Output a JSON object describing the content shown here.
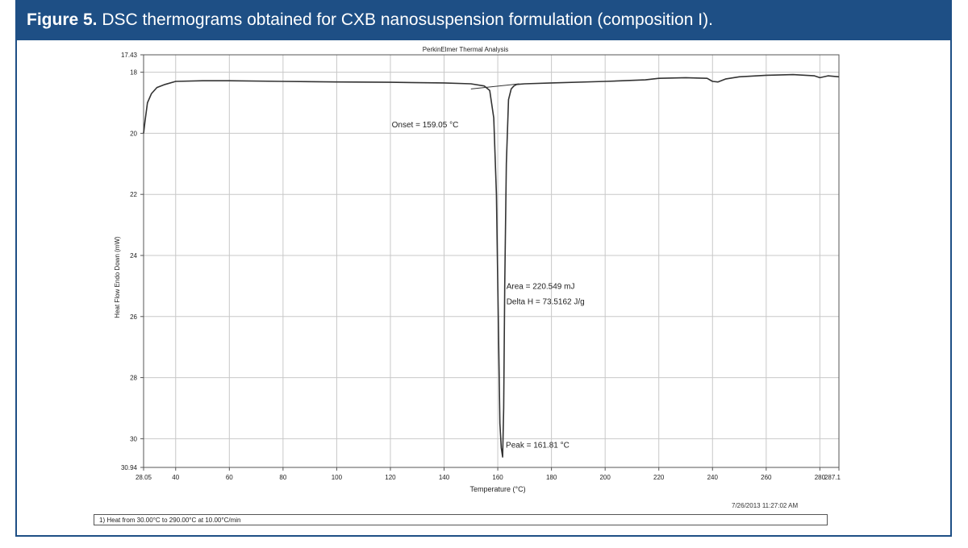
{
  "figure": {
    "label": "Figure 5.",
    "caption": "DSC thermograms obtained for CXB nanosuspension formulation (composition I)."
  },
  "colors": {
    "banner": "#1e4f85",
    "line": "#333333",
    "grid": "#c8c8c8"
  },
  "chart_data": {
    "type": "line",
    "title": "PerkinElmer Thermal Analysis",
    "xlabel": "Temperature (°C)",
    "ylabel": "Heat Flow Endo Down (mW)",
    "xlim": [
      28.05,
      287.1
    ],
    "ylim": [
      17.43,
      30.94
    ],
    "y_inverted": true,
    "grid": true,
    "x_ticks": [
      {
        "v": 28.05,
        "label": "28.05"
      },
      {
        "v": 40,
        "label": "40"
      },
      {
        "v": 60,
        "label": "60"
      },
      {
        "v": 80,
        "label": "80"
      },
      {
        "v": 100,
        "label": "100"
      },
      {
        "v": 120,
        "label": "120"
      },
      {
        "v": 140,
        "label": "140"
      },
      {
        "v": 160,
        "label": "160"
      },
      {
        "v": 180,
        "label": "180"
      },
      {
        "v": 200,
        "label": "200"
      },
      {
        "v": 220,
        "label": "220"
      },
      {
        "v": 240,
        "label": "240"
      },
      {
        "v": 260,
        "label": "260"
      },
      {
        "v": 280,
        "label": "280"
      },
      {
        "v": 287.1,
        "label": "287.1"
      }
    ],
    "y_ticks": [
      {
        "v": 17.43,
        "label": "17.43"
      },
      {
        "v": 18,
        "label": "18"
      },
      {
        "v": 20,
        "label": "20"
      },
      {
        "v": 22,
        "label": "22"
      },
      {
        "v": 24,
        "label": "24"
      },
      {
        "v": 26,
        "label": "26"
      },
      {
        "v": 28,
        "label": "28"
      },
      {
        "v": 30,
        "label": "30"
      },
      {
        "v": 30.94,
        "label": "30.94"
      }
    ],
    "series": [
      {
        "x": [
          28.05,
          28.6,
          29.5,
          31,
          33,
          36,
          40,
          50,
          60,
          80,
          100,
          120,
          140,
          150,
          155,
          157,
          158.5,
          159.5,
          160.2,
          160.8,
          161.3,
          161.81,
          162.2,
          162.6,
          163.2,
          164,
          165,
          166,
          167,
          170,
          180,
          200,
          215,
          220,
          230,
          238,
          240,
          242,
          245,
          250,
          260,
          270,
          278,
          280,
          283,
          287.1
        ],
        "y": [
          20.0,
          19.6,
          19.0,
          18.7,
          18.5,
          18.4,
          18.3,
          18.28,
          18.28,
          18.3,
          18.32,
          18.33,
          18.35,
          18.38,
          18.45,
          18.6,
          19.5,
          22.0,
          26.0,
          29.5,
          30.3,
          30.6,
          29.0,
          25.0,
          21.0,
          18.9,
          18.55,
          18.45,
          18.4,
          18.38,
          18.35,
          18.3,
          18.25,
          18.2,
          18.18,
          18.2,
          18.3,
          18.32,
          18.22,
          18.15,
          18.1,
          18.08,
          18.12,
          18.18,
          18.12,
          18.15
        ]
      }
    ],
    "baseline": {
      "x": [
        150,
        168
      ],
      "y": [
        18.55,
        18.38
      ]
    },
    "annotations": {
      "onset": "Onset = 159.05 °C",
      "area": "Area = 220.549 mJ",
      "delta_h": "Delta H = 73.5162 J/g",
      "peak": "Peak = 161.81 °C"
    },
    "timestamp": "7/26/2013 11:27:02 AM",
    "method": "1)  Heat from 30.00°C to 290.00°C at 10.00°C/min"
  }
}
